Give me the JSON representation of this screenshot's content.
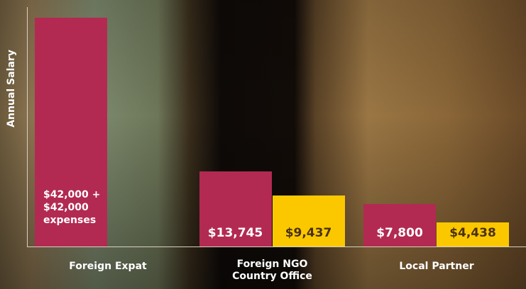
{
  "chart_data": {
    "type": "bar",
    "ylabel": "Annual Salary",
    "categories": [
      "Foreign Expat",
      "Foreign NGO Country Office",
      "Local Partner"
    ],
    "series": [
      {
        "color": "#b22a52",
        "values": [
          42000,
          13745,
          7800
        ],
        "value_labels": [
          "$42,000 + $42,000 expenses",
          "$13,745",
          "$7,800"
        ]
      },
      {
        "color": "#fbc800",
        "values": [
          null,
          9437,
          4438
        ],
        "value_labels": [
          null,
          "$9,437",
          "$4,438"
        ]
      }
    ],
    "ylim": [
      0,
      44000
    ]
  }
}
